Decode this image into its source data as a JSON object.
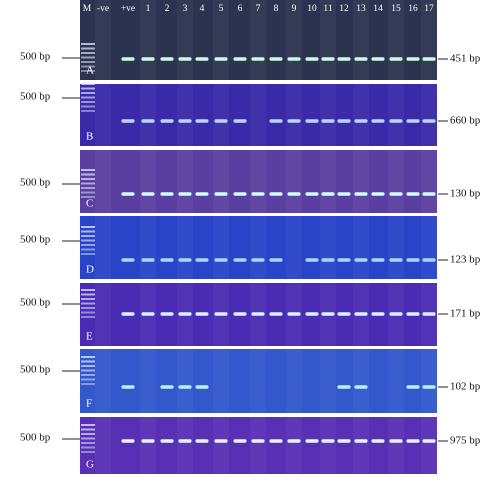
{
  "lanes": [
    "M",
    "-ve",
    "+ve",
    "1",
    "2",
    "3",
    "4",
    "5",
    "6",
    "7",
    "8",
    "9",
    "10",
    "11",
    "12",
    "13",
    "14",
    "15",
    "16",
    "17"
  ],
  "panels": [
    {
      "letter": "A",
      "marker": "500 bp",
      "size": "451 bp"
    },
    {
      "letter": "B",
      "marker": "500 bp",
      "size": "660 bp"
    },
    {
      "letter": "C",
      "marker": "500 bp",
      "size": "130 bp"
    },
    {
      "letter": "D",
      "marker": "500 bp",
      "size": "123 bp"
    },
    {
      "letter": "E",
      "marker": "500 bp",
      "size": "171 bp"
    },
    {
      "letter": "F",
      "marker": "500 bp",
      "size": "102 bp"
    },
    {
      "letter": "G",
      "marker": "500 bp",
      "size": "975 bp"
    }
  ]
}
